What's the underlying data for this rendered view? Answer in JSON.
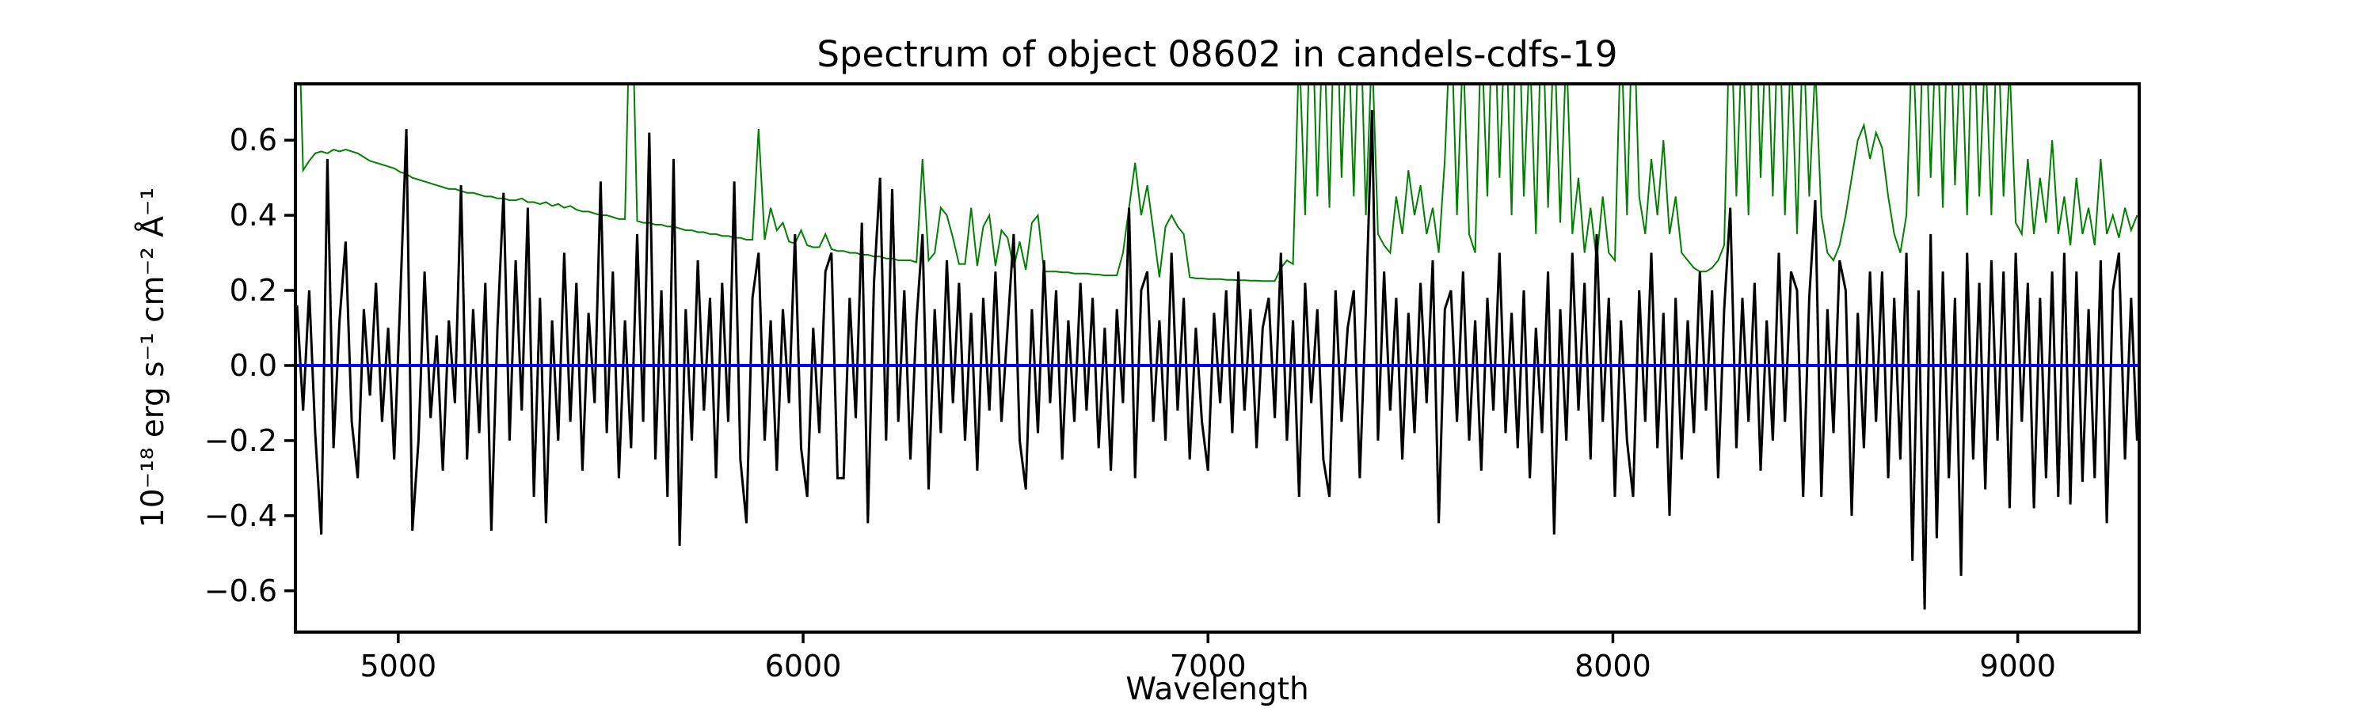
{
  "figure": {
    "background": "#ffffff"
  },
  "chart_data": {
    "type": "line",
    "title": "Spectrum of object 08602 in candels-cdfs-19",
    "xlabel": "Wavelength",
    "ylabel": "10⁻¹⁸ erg s⁻¹ cm⁻² Å⁻¹",
    "xlim": [
      4746,
      9300
    ],
    "ylim": [
      -0.71,
      0.75
    ],
    "xticks": [
      5000,
      6000,
      7000,
      8000,
      9000
    ],
    "xtick_labels": [
      "5000",
      "6000",
      "7000",
      "8000",
      "9000"
    ],
    "yticks": [
      0.6,
      0.4,
      0.2,
      0.0,
      -0.2,
      -0.4,
      -0.6
    ],
    "ytick_labels": [
      "0.6",
      "0.4",
      "0.2",
      "0.0",
      "−0.2",
      "−0.4",
      "−0.6"
    ],
    "axis_color": "#000000",
    "grid": false,
    "legend": null,
    "series": [
      {
        "name": "sky-noise-spectrum",
        "color": "#008000",
        "width": 2,
        "x0": 4750,
        "dx": 15,
        "y": [
          1.1,
          0.52,
          0.545,
          0.565,
          0.57,
          0.565,
          0.575,
          0.57,
          0.575,
          0.57,
          0.565,
          0.555,
          0.545,
          0.54,
          0.535,
          0.53,
          0.525,
          0.515,
          0.51,
          0.5,
          0.495,
          0.49,
          0.485,
          0.48,
          0.475,
          0.47,
          0.47,
          0.465,
          0.46,
          0.46,
          0.455,
          0.45,
          0.45,
          0.445,
          0.445,
          0.44,
          0.44,
          0.445,
          0.435,
          0.435,
          0.43,
          0.435,
          0.425,
          0.43,
          0.42,
          0.425,
          0.415,
          0.41,
          0.41,
          0.405,
          0.4,
          0.4,
          0.395,
          0.39,
          0.39,
          1.1,
          0.385,
          0.38,
          0.38,
          0.375,
          0.375,
          0.37,
          0.37,
          0.365,
          0.36,
          0.36,
          0.355,
          0.355,
          0.35,
          0.35,
          0.345,
          0.345,
          0.34,
          0.34,
          0.335,
          0.335,
          0.63,
          0.335,
          0.42,
          0.36,
          0.38,
          0.33,
          0.325,
          0.36,
          0.32,
          0.315,
          0.315,
          0.35,
          0.31,
          0.305,
          0.305,
          0.3,
          0.3,
          0.295,
          0.295,
          0.29,
          0.29,
          0.285,
          0.285,
          0.28,
          0.28,
          0.28,
          0.275,
          0.55,
          0.28,
          0.3,
          0.42,
          0.4,
          0.34,
          0.27,
          0.27,
          0.42,
          0.265,
          0.37,
          0.4,
          0.265,
          0.36,
          0.34,
          0.26,
          0.33,
          0.255,
          0.38,
          0.4,
          0.25,
          0.25,
          0.25,
          0.248,
          0.248,
          0.245,
          0.245,
          0.245,
          0.243,
          0.242,
          0.24,
          0.24,
          0.24,
          0.3,
          0.42,
          0.54,
          0.4,
          0.48,
          0.36,
          0.235,
          0.37,
          0.4,
          0.37,
          0.35,
          0.235,
          0.232,
          0.232,
          0.23,
          0.23,
          0.23,
          0.228,
          0.228,
          0.227,
          0.227,
          0.226,
          0.226,
          0.225,
          0.225,
          0.225,
          0.26,
          0.28,
          0.27,
          0.85,
          0.4,
          1.05,
          0.45,
          0.95,
          0.42,
          1.1,
          0.5,
          0.95,
          0.45,
          1.0,
          0.4,
          0.85,
          0.35,
          0.32,
          0.3,
          0.45,
          0.35,
          0.52,
          0.4,
          0.48,
          0.35,
          0.42,
          0.3,
          0.55,
          0.95,
          0.4,
          0.85,
          0.35,
          0.3,
          0.9,
          0.45,
          1.05,
          0.5,
          0.95,
          0.4,
          1.1,
          0.45,
          0.85,
          0.35,
          1.0,
          0.42,
          0.9,
          0.38,
          0.85,
          0.35,
          0.5,
          0.3,
          0.42,
          0.28,
          0.45,
          0.3,
          0.28,
          0.9,
          0.4,
          1.0,
          0.45,
          0.35,
          0.55,
          0.4,
          0.6,
          0.35,
          0.45,
          0.3,
          0.28,
          0.26,
          0.25,
          0.25,
          0.26,
          0.28,
          0.32,
          1.0,
          0.45,
          0.9,
          0.4,
          1.1,
          0.5,
          0.95,
          0.45,
          1.0,
          0.4,
          0.85,
          0.35,
          0.9,
          0.45,
          0.8,
          0.4,
          0.3,
          0.28,
          0.32,
          0.4,
          0.5,
          0.6,
          0.64,
          0.55,
          0.62,
          0.58,
          0.45,
          0.35,
          0.3,
          0.4,
          0.9,
          0.45,
          1.05,
          0.5,
          0.95,
          0.42,
          1.1,
          0.48,
          0.9,
          0.4,
          1.0,
          0.45,
          0.85,
          0.4,
          0.95,
          0.45,
          0.8,
          0.38,
          0.35,
          0.55,
          0.35,
          0.5,
          0.38,
          0.6,
          0.35,
          0.45,
          0.32,
          0.5,
          0.35,
          0.42,
          0.32,
          0.55,
          0.35,
          0.4,
          0.34,
          0.42,
          0.36,
          0.4
        ]
      },
      {
        "name": "object-flux-spectrum",
        "color": "#000000",
        "width": 3,
        "x0": 4750,
        "dx": 15,
        "y": [
          0.16,
          -0.12,
          0.2,
          -0.18,
          -0.45,
          0.55,
          -0.22,
          0.12,
          0.33,
          -0.15,
          -0.3,
          0.15,
          -0.08,
          0.22,
          -0.15,
          0.1,
          -0.25,
          0.18,
          0.63,
          -0.44,
          -0.2,
          0.25,
          -0.14,
          0.08,
          -0.28,
          0.12,
          -0.1,
          0.48,
          -0.25,
          0.15,
          -0.18,
          0.22,
          -0.44,
          0.1,
          0.46,
          -0.2,
          0.28,
          -0.12,
          0.42,
          -0.35,
          0.18,
          -0.42,
          0.12,
          -0.2,
          0.3,
          -0.15,
          0.22,
          -0.28,
          0.14,
          -0.1,
          0.49,
          -0.18,
          0.25,
          -0.3,
          0.12,
          -0.22,
          0.35,
          -0.15,
          0.62,
          -0.25,
          0.2,
          -0.35,
          0.55,
          -0.48,
          0.15,
          -0.2,
          0.28,
          -0.12,
          0.18,
          -0.3,
          0.22,
          -0.15,
          0.49,
          -0.25,
          -0.42,
          0.18,
          0.3,
          -0.2,
          0.12,
          -0.28,
          0.15,
          -0.1,
          0.35,
          -0.22,
          -0.35,
          0.1,
          -0.18,
          0.25,
          0.3,
          -0.3,
          -0.3,
          0.18,
          -0.14,
          0.38,
          -0.42,
          0.22,
          0.5,
          -0.2,
          0.47,
          -0.15,
          0.2,
          -0.25,
          0.12,
          0.35,
          -0.33,
          0.15,
          -0.18,
          0.28,
          -0.1,
          0.22,
          -0.2,
          0.14,
          -0.28,
          0.18,
          -0.12,
          0.25,
          -0.15,
          0.1,
          0.35,
          -0.2,
          -0.33,
          0.15,
          -0.18,
          0.28,
          -0.1,
          0.2,
          -0.25,
          0.12,
          -0.15,
          0.22,
          -0.12,
          0.18,
          -0.22,
          0.1,
          -0.28,
          0.15,
          -0.1,
          0.42,
          -0.3,
          0.2,
          0.25,
          -0.15,
          0.12,
          -0.2,
          0.3,
          -0.12,
          0.18,
          -0.25,
          0.1,
          -0.15,
          -0.28,
          0.14,
          -0.1,
          0.2,
          -0.18,
          0.25,
          -0.12,
          0.15,
          -0.22,
          0.1,
          0.18,
          -0.14,
          0.3,
          -0.2,
          0.12,
          -0.35,
          0.22,
          -0.1,
          0.15,
          -0.25,
          -0.35,
          0.2,
          -0.15,
          0.1,
          0.2,
          -0.3,
          0.15,
          0.68,
          -0.2,
          0.25,
          -0.12,
          0.18,
          -0.25,
          0.14,
          -0.18,
          0.22,
          -0.1,
          0.28,
          -0.42,
          0.15,
          0.2,
          -0.15,
          0.25,
          -0.2,
          0.12,
          -0.28,
          0.18,
          -0.12,
          0.3,
          -0.18,
          0.14,
          -0.22,
          0.2,
          -0.3,
          0.1,
          -0.18,
          0.25,
          -0.45,
          0.15,
          -0.2,
          0.3,
          -0.12,
          0.22,
          -0.25,
          0.35,
          -0.15,
          0.18,
          -0.35,
          0.12,
          -0.2,
          -0.35,
          0.2,
          -0.15,
          0.3,
          -0.22,
          0.14,
          -0.4,
          0.18,
          -0.25,
          0.12,
          -0.18,
          0.25,
          -0.12,
          0.2,
          -0.3,
          0.15,
          0.42,
          -0.22,
          0.18,
          -0.15,
          0.22,
          -0.28,
          0.12,
          -0.2,
          0.3,
          -0.15,
          0.25,
          0.2,
          -0.35,
          0.18,
          0.44,
          -0.35,
          0.15,
          -0.18,
          0.28,
          0.2,
          -0.4,
          0.14,
          -0.22,
          0.25,
          -0.15,
          0.25,
          -0.3,
          0.18,
          -0.25,
          0.3,
          -0.52,
          0.2,
          -0.65,
          0.35,
          -0.46,
          0.25,
          -0.3,
          0.18,
          -0.56,
          0.3,
          -0.25,
          0.22,
          -0.33,
          0.28,
          -0.2,
          0.25,
          -0.38,
          0.3,
          -0.15,
          0.22,
          -0.38,
          0.18,
          -0.3,
          0.25,
          -0.35,
          0.3,
          -0.37,
          0.25,
          -0.31,
          0.15,
          -0.3,
          0.28,
          -0.42,
          0.2,
          0.3,
          -0.25,
          0.18,
          -0.2
        ]
      },
      {
        "name": "zero-line",
        "color": "#0000ff",
        "width": 4,
        "const": 0.0
      }
    ]
  }
}
